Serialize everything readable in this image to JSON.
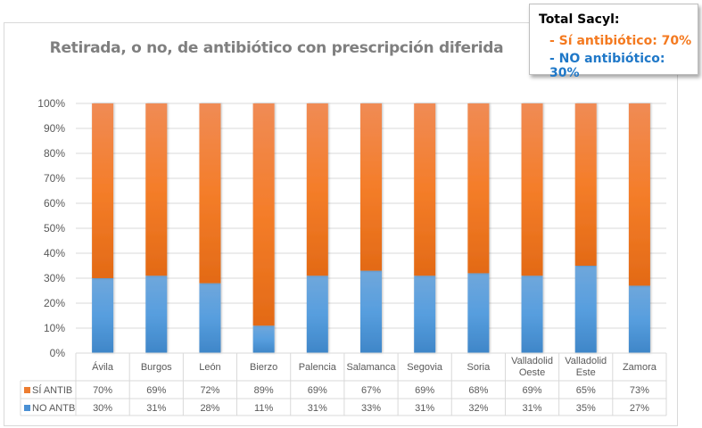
{
  "callout": {
    "title": "Total Sacyl:",
    "line_si": "- Sí antibiótico: 70%",
    "line_no": "- NO antibiótico: 30%",
    "color_si": "#f47a20",
    "color_no": "#1f78c8"
  },
  "chart_data": {
    "type": "bar",
    "stacked": true,
    "percent": true,
    "title": "Retirada, o no, de antibiótico con prescripción diferida",
    "xlabel": "",
    "ylabel": "",
    "ylim": [
      0,
      100
    ],
    "yticks": [
      "0%",
      "10%",
      "20%",
      "30%",
      "40%",
      "50%",
      "60%",
      "70%",
      "80%",
      "90%",
      "100%"
    ],
    "grid": true,
    "legend": "data-table",
    "categories": [
      [
        "Ávila"
      ],
      [
        "Burgos"
      ],
      [
        "León"
      ],
      [
        "Bierzo"
      ],
      [
        "Palencia"
      ],
      [
        "Salamanca"
      ],
      [
        "Segovia"
      ],
      [
        "Soria"
      ],
      [
        "Valladolid",
        "Oeste"
      ],
      [
        "Valladolid",
        "Este"
      ],
      [
        "Zamora"
      ]
    ],
    "series": [
      {
        "name": "NO ANTB",
        "color": "#4a90d4",
        "values": [
          30,
          31,
          28,
          11,
          31,
          33,
          31,
          32,
          31,
          35,
          27
        ],
        "labels": [
          "30%",
          "31%",
          "28%",
          "11%",
          "31%",
          "33%",
          "31%",
          "32%",
          "31%",
          "35%",
          "27%"
        ]
      },
      {
        "name": "SÍ ANTIB",
        "color": "#ed7d31",
        "values": [
          70,
          69,
          72,
          89,
          69,
          67,
          69,
          68,
          69,
          65,
          73
        ],
        "labels": [
          "70%",
          "69%",
          "72%",
          "89%",
          "69%",
          "67%",
          "69%",
          "68%",
          "69%",
          "65%",
          "73%"
        ]
      }
    ],
    "table_rows_order": [
      "SÍ ANTIB",
      "NO ANTB"
    ]
  }
}
